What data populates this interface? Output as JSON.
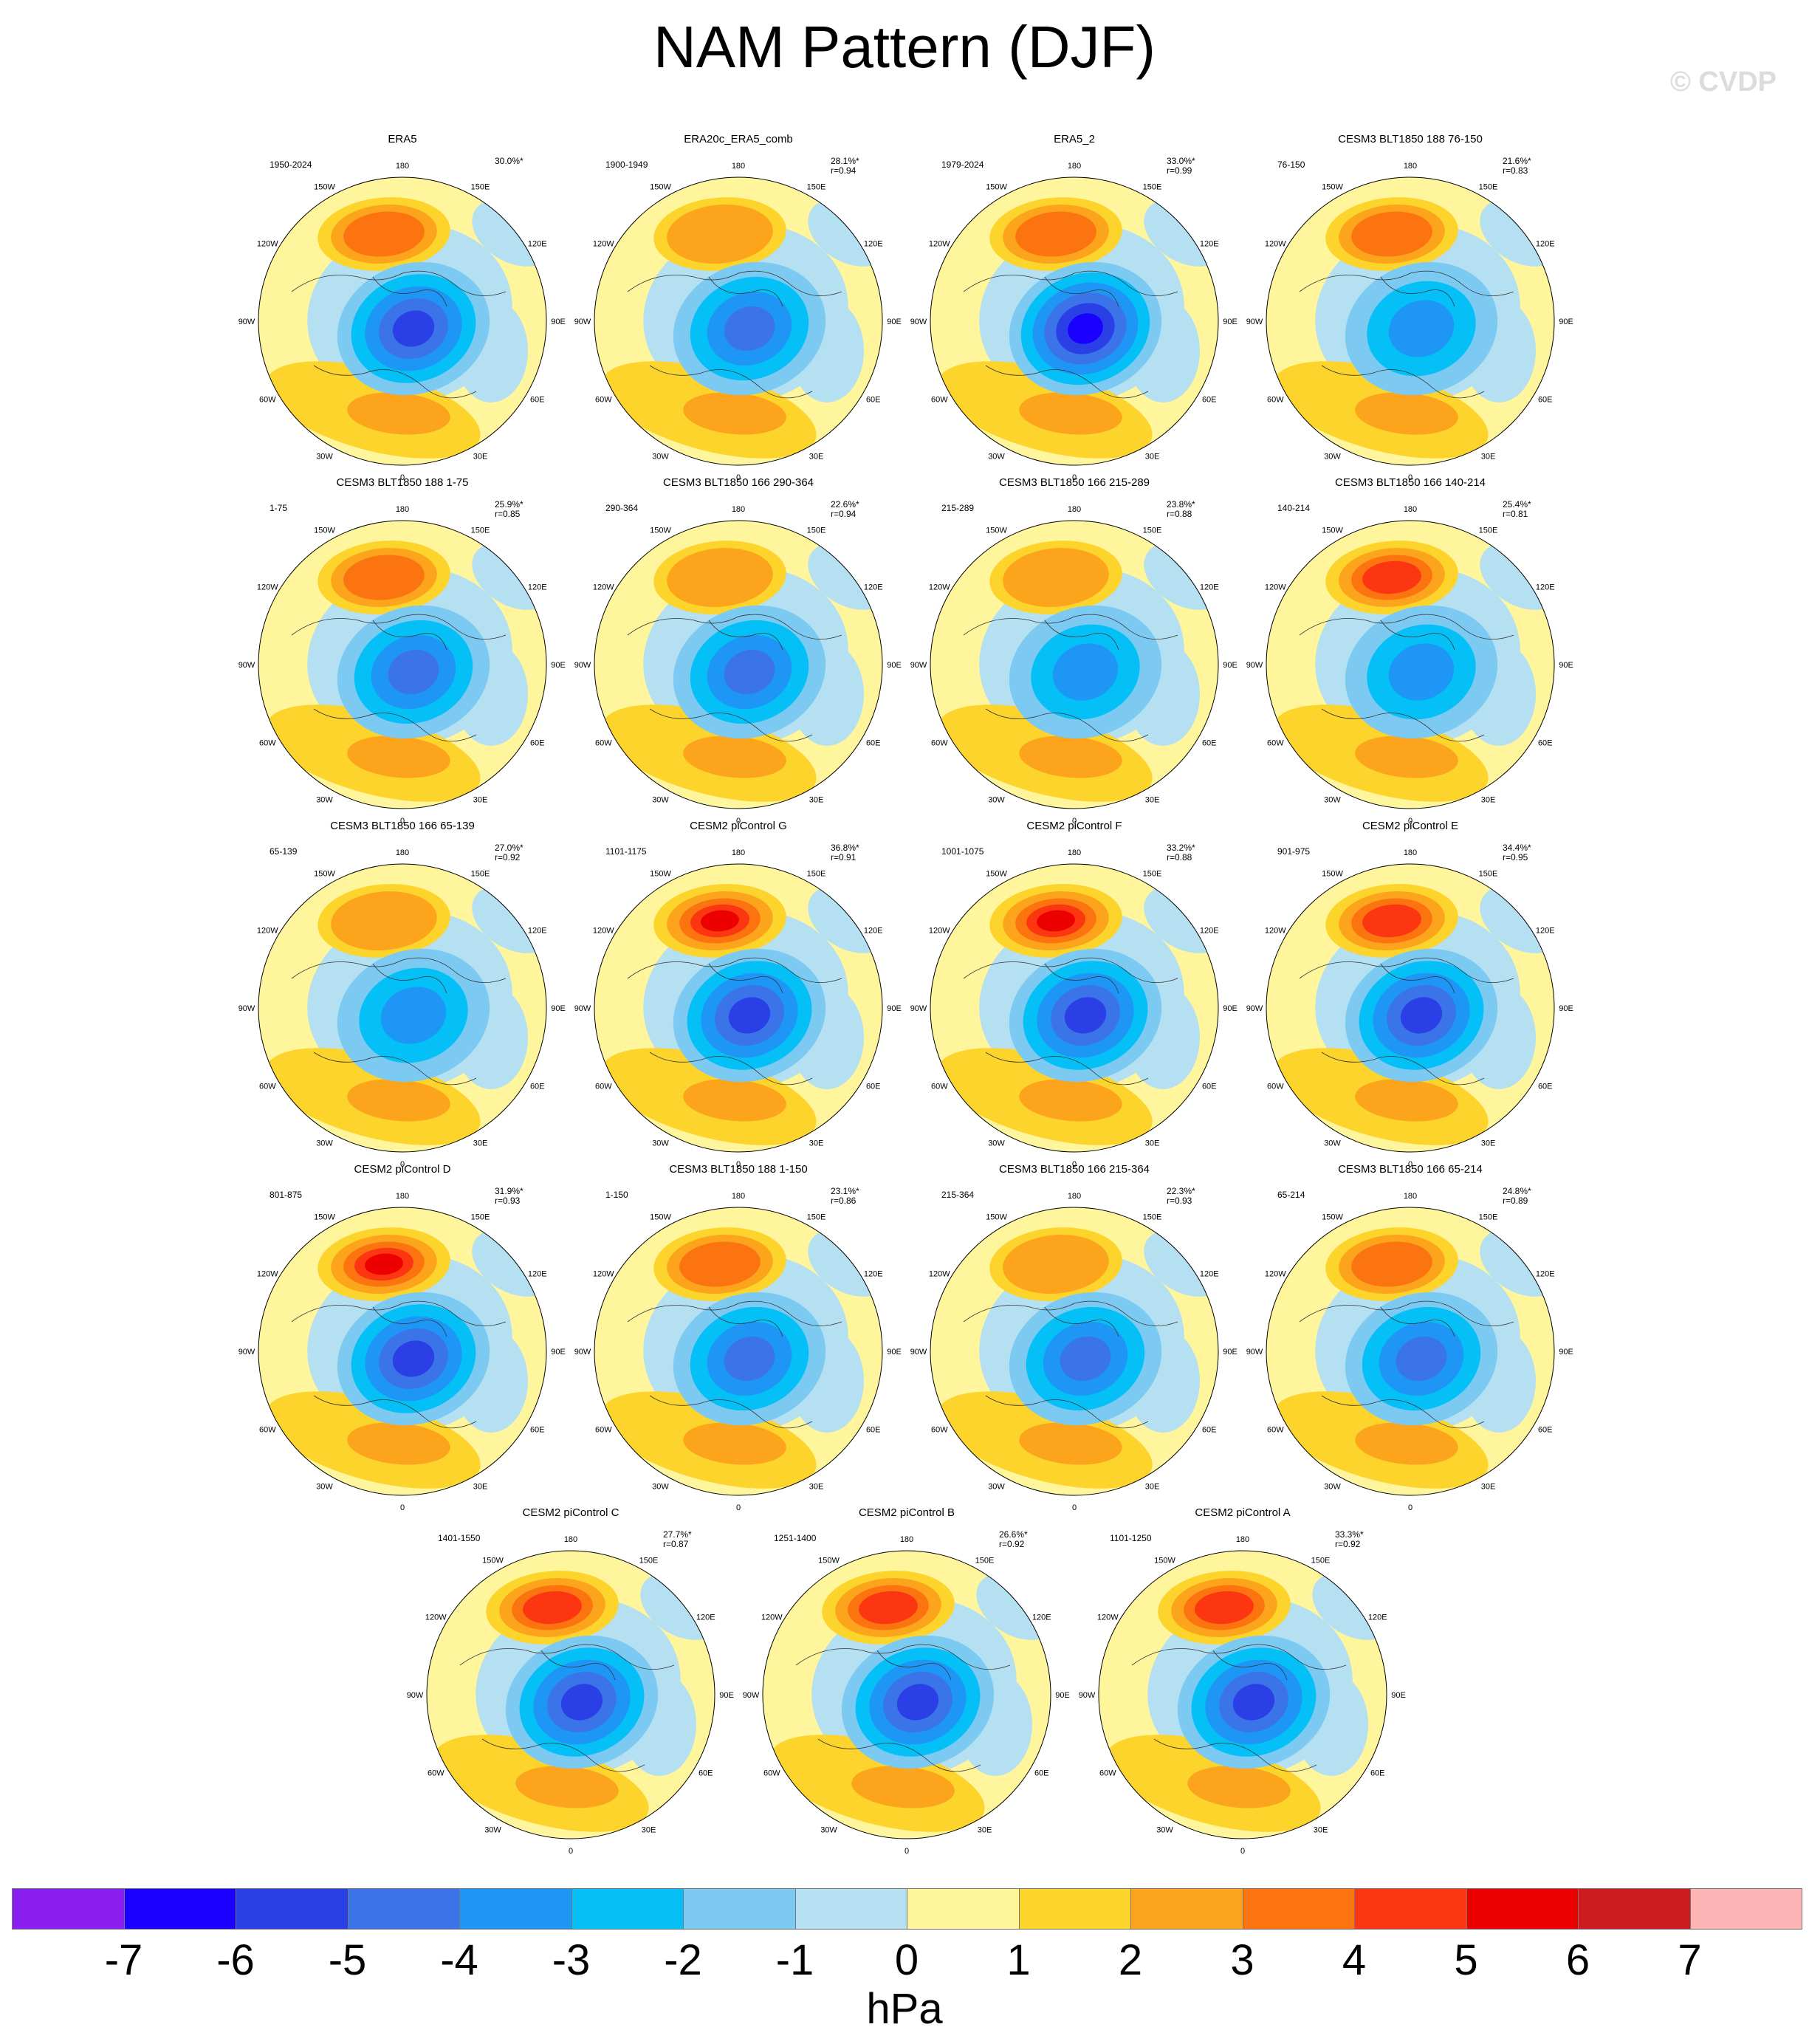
{
  "title": "NAM Pattern (DJF)",
  "watermark": "© CVDP",
  "colorbar": {
    "units": "hPa",
    "ticks": [
      "-7",
      "-6",
      "-5",
      "-4",
      "-3",
      "-2",
      "-1",
      "0",
      "1",
      "2",
      "3",
      "4",
      "5",
      "6",
      "7"
    ],
    "colors": [
      "#8a1ef0",
      "#1a00ff",
      "#2a40e6",
      "#3a74e8",
      "#1e96f6",
      "#04c0f6",
      "#7ccaf2",
      "#b4e0f2",
      "#fff59c",
      "#fcd42c",
      "#fca41c",
      "#fc7410",
      "#fc3610",
      "#ec0000",
      "#cc1c20",
      "#fcb4b4"
    ]
  },
  "lon_labels": [
    "180",
    "150E",
    "120E",
    "90E",
    "60E",
    "30E",
    "0",
    "30W",
    "60W",
    "90W",
    "120W",
    "150W"
  ],
  "panels": [
    {
      "title": "ERA5",
      "years": "1950-2024",
      "pct": "30.0%*",
      "r": "",
      "amp": [
        -5,
        -4,
        3,
        2
      ]
    },
    {
      "title": "ERA20c_ERA5_comb",
      "years": "1900-1949",
      "pct": "28.1%*",
      "r": "r=0.94",
      "amp": [
        -4,
        -3,
        2,
        2
      ]
    },
    {
      "title": "ERA5_2",
      "years": "1979-2024",
      "pct": "33.0%*",
      "r": "r=0.99",
      "amp": [
        -6,
        -5,
        3,
        2
      ]
    },
    {
      "title": "CESM3 BLT1850 188 76-150",
      "years": "76-150",
      "pct": "21.6%*",
      "r": "r=0.83",
      "amp": [
        -3,
        -2,
        3,
        2
      ]
    },
    {
      "title": "CESM3 BLT1850 188 1-75",
      "years": "1-75",
      "pct": "25.9%*",
      "r": "r=0.85",
      "amp": [
        -4,
        -3,
        3,
        2
      ]
    },
    {
      "title": "CESM3 BLT1850 166 290-364",
      "years": "290-364",
      "pct": "22.6%*",
      "r": "r=0.94",
      "amp": [
        -4,
        -3,
        2,
        2
      ]
    },
    {
      "title": "CESM3 BLT1850 166 215-289",
      "years": "215-289",
      "pct": "23.8%*",
      "r": "r=0.88",
      "amp": [
        -3,
        -2,
        2,
        2
      ]
    },
    {
      "title": "CESM3 BLT1850 166 140-214",
      "years": "140-214",
      "pct": "25.4%*",
      "r": "r=0.81",
      "amp": [
        -3,
        -2,
        4,
        2
      ]
    },
    {
      "title": "CESM3 BLT1850 166 65-139",
      "years": "65-139",
      "pct": "27.0%*",
      "r": "r=0.92",
      "amp": [
        -3,
        -2,
        2,
        2
      ]
    },
    {
      "title": "CESM2 piControl G",
      "years": "1101-1175",
      "pct": "36.8%*",
      "r": "r=0.91",
      "amp": [
        -5,
        -4,
        5,
        2
      ]
    },
    {
      "title": "CESM2 piControl F",
      "years": "1001-1075",
      "pct": "33.2%*",
      "r": "r=0.88",
      "amp": [
        -5,
        -4,
        5,
        2
      ]
    },
    {
      "title": "CESM2 piControl E",
      "years": "901-975",
      "pct": "34.4%*",
      "r": "r=0.95",
      "amp": [
        -5,
        -4,
        4,
        2
      ]
    },
    {
      "title": "CESM2 piControl D",
      "years": "801-875",
      "pct": "31.9%*",
      "r": "r=0.93",
      "amp": [
        -5,
        -4,
        5,
        2
      ]
    },
    {
      "title": "CESM3 BLT1850 188 1-150",
      "years": "1-150",
      "pct": "23.1%*",
      "r": "r=0.86",
      "amp": [
        -4,
        -3,
        3,
        2
      ]
    },
    {
      "title": "CESM3 BLT1850 166 215-364",
      "years": "215-364",
      "pct": "22.3%*",
      "r": "r=0.93",
      "amp": [
        -4,
        -3,
        2,
        2
      ]
    },
    {
      "title": "CESM3 BLT1850 166 65-214",
      "years": "65-214",
      "pct": "24.8%*",
      "r": "r=0.89",
      "amp": [
        -4,
        -3,
        3,
        2
      ]
    },
    {
      "title": "CESM2 piControl C",
      "years": "1401-1550",
      "pct": "27.7%*",
      "r": "r=0.87",
      "amp": [
        -5,
        -4,
        4,
        2
      ]
    },
    {
      "title": "CESM2 piControl B",
      "years": "1251-1400",
      "pct": "26.6%*",
      "r": "r=0.92",
      "amp": [
        -5,
        -4,
        4,
        2
      ]
    },
    {
      "title": "CESM2 piControl A",
      "years": "1101-1250",
      "pct": "33.3%*",
      "r": "r=0.92",
      "amp": [
        -5,
        -4,
        4,
        2
      ]
    }
  ]
}
